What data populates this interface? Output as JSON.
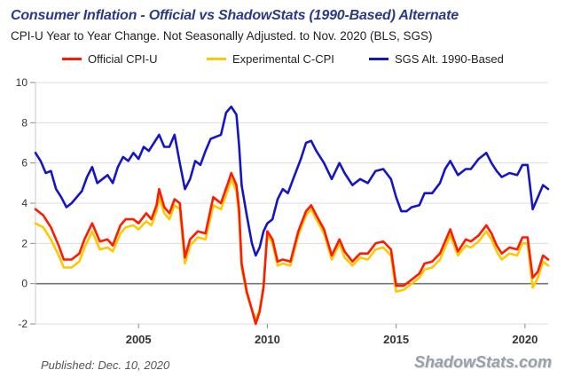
{
  "chart_data": {
    "type": "line",
    "title": "Consumer Inflation - Official vs ShadowStats (1990-Based) Alternate",
    "subtitle": "CPI-U Year to Year Change. Not Seasonally Adjusted. to Nov. 2020  (BLS, SGS)",
    "xlim": [
      2001,
      2020.9
    ],
    "ylim": [
      -2,
      10
    ],
    "x_ticks": [
      2005,
      2010,
      2015,
      2020
    ],
    "x_tick_labels": [
      "2005",
      "2010",
      "2015",
      "2020"
    ],
    "y_ticks": [
      -2,
      0,
      2,
      4,
      6,
      8,
      10
    ],
    "y_tick_labels": [
      "-2",
      "0",
      "2",
      "4",
      "6",
      "8",
      "10"
    ],
    "grid": "horizontal",
    "zero_line": true,
    "legend_position": "top",
    "series": [
      {
        "name": "Official CPI-U",
        "color": "#ff1a00",
        "points": [
          [
            2001.0,
            3.7
          ],
          [
            2001.3,
            3.4
          ],
          [
            2001.6,
            2.8
          ],
          [
            2001.9,
            1.9
          ],
          [
            2002.1,
            1.2
          ],
          [
            2002.4,
            1.2
          ],
          [
            2002.7,
            1.5
          ],
          [
            2002.9,
            2.2
          ],
          [
            2003.2,
            3.0
          ],
          [
            2003.5,
            2.1
          ],
          [
            2003.8,
            2.2
          ],
          [
            2004.0,
            1.9
          ],
          [
            2004.3,
            2.9
          ],
          [
            2004.5,
            3.2
          ],
          [
            2004.8,
            3.2
          ],
          [
            2005.0,
            3.0
          ],
          [
            2005.3,
            3.5
          ],
          [
            2005.5,
            3.2
          ],
          [
            2005.7,
            3.9
          ],
          [
            2005.8,
            4.7
          ],
          [
            2006.0,
            3.8
          ],
          [
            2006.2,
            3.5
          ],
          [
            2006.4,
            4.2
          ],
          [
            2006.6,
            4.0
          ],
          [
            2006.8,
            1.3
          ],
          [
            2007.0,
            2.2
          ],
          [
            2007.3,
            2.6
          ],
          [
            2007.6,
            2.5
          ],
          [
            2007.9,
            4.3
          ],
          [
            2008.2,
            4.0
          ],
          [
            2008.5,
            5.1
          ],
          [
            2008.6,
            5.5
          ],
          [
            2008.8,
            4.9
          ],
          [
            2008.9,
            3.7
          ],
          [
            2009.0,
            1.0
          ],
          [
            2009.2,
            -0.4
          ],
          [
            2009.4,
            -1.3
          ],
          [
            2009.55,
            -2.0
          ],
          [
            2009.7,
            -1.4
          ],
          [
            2009.85,
            -0.2
          ],
          [
            2010.0,
            2.6
          ],
          [
            2010.2,
            2.2
          ],
          [
            2010.4,
            1.1
          ],
          [
            2010.6,
            1.2
          ],
          [
            2010.9,
            1.1
          ],
          [
            2011.2,
            2.6
          ],
          [
            2011.5,
            3.6
          ],
          [
            2011.7,
            3.9
          ],
          [
            2011.9,
            3.4
          ],
          [
            2012.2,
            2.7
          ],
          [
            2012.5,
            1.4
          ],
          [
            2012.8,
            2.2
          ],
          [
            2013.0,
            1.6
          ],
          [
            2013.3,
            1.1
          ],
          [
            2013.6,
            1.5
          ],
          [
            2013.9,
            1.5
          ],
          [
            2014.2,
            2.0
          ],
          [
            2014.5,
            2.1
          ],
          [
            2014.8,
            1.7
          ],
          [
            2015.0,
            -0.1
          ],
          [
            2015.3,
            -0.1
          ],
          [
            2015.6,
            0.2
          ],
          [
            2015.9,
            0.5
          ],
          [
            2016.1,
            1.0
          ],
          [
            2016.4,
            1.1
          ],
          [
            2016.7,
            1.5
          ],
          [
            2016.9,
            2.1
          ],
          [
            2017.1,
            2.7
          ],
          [
            2017.4,
            1.6
          ],
          [
            2017.7,
            2.2
          ],
          [
            2017.9,
            2.1
          ],
          [
            2018.2,
            2.4
          ],
          [
            2018.5,
            2.9
          ],
          [
            2018.7,
            2.5
          ],
          [
            2018.9,
            1.9
          ],
          [
            2019.1,
            1.5
          ],
          [
            2019.4,
            1.8
          ],
          [
            2019.7,
            1.7
          ],
          [
            2019.9,
            2.3
          ],
          [
            2020.1,
            2.3
          ],
          [
            2020.3,
            0.3
          ],
          [
            2020.5,
            0.6
          ],
          [
            2020.7,
            1.4
          ],
          [
            2020.9,
            1.2
          ]
        ]
      },
      {
        "name": "Experimental C-CPI",
        "color": "#ffc800",
        "points": [
          [
            2001.0,
            3.0
          ],
          [
            2001.3,
            2.8
          ],
          [
            2001.6,
            2.2
          ],
          [
            2001.9,
            1.4
          ],
          [
            2002.1,
            0.8
          ],
          [
            2002.4,
            0.8
          ],
          [
            2002.7,
            1.1
          ],
          [
            2002.9,
            1.8
          ],
          [
            2003.2,
            2.6
          ],
          [
            2003.5,
            1.7
          ],
          [
            2003.8,
            1.8
          ],
          [
            2004.0,
            1.6
          ],
          [
            2004.3,
            2.5
          ],
          [
            2004.5,
            2.8
          ],
          [
            2004.8,
            2.9
          ],
          [
            2005.0,
            2.7
          ],
          [
            2005.3,
            3.1
          ],
          [
            2005.5,
            2.9
          ],
          [
            2005.7,
            3.6
          ],
          [
            2005.8,
            4.3
          ],
          [
            2006.0,
            3.5
          ],
          [
            2006.2,
            3.2
          ],
          [
            2006.4,
            3.9
          ],
          [
            2006.6,
            3.7
          ],
          [
            2006.8,
            1.0
          ],
          [
            2007.0,
            1.9
          ],
          [
            2007.3,
            2.3
          ],
          [
            2007.6,
            2.2
          ],
          [
            2007.9,
            3.9
          ],
          [
            2008.2,
            3.7
          ],
          [
            2008.5,
            4.8
          ],
          [
            2008.6,
            5.2
          ],
          [
            2008.8,
            4.6
          ],
          [
            2008.9,
            3.4
          ],
          [
            2009.0,
            0.8
          ],
          [
            2009.2,
            -0.5
          ],
          [
            2009.4,
            -1.3
          ],
          [
            2009.55,
            -1.8
          ],
          [
            2009.7,
            -1.3
          ],
          [
            2009.85,
            -0.1
          ],
          [
            2010.0,
            2.4
          ],
          [
            2010.2,
            2.0
          ],
          [
            2010.4,
            0.9
          ],
          [
            2010.6,
            1.0
          ],
          [
            2010.9,
            0.9
          ],
          [
            2011.2,
            2.4
          ],
          [
            2011.5,
            3.4
          ],
          [
            2011.7,
            3.7
          ],
          [
            2011.9,
            3.2
          ],
          [
            2012.2,
            2.5
          ],
          [
            2012.5,
            1.2
          ],
          [
            2012.8,
            2.0
          ],
          [
            2013.0,
            1.3
          ],
          [
            2013.3,
            0.9
          ],
          [
            2013.6,
            1.3
          ],
          [
            2013.9,
            1.2
          ],
          [
            2014.2,
            1.7
          ],
          [
            2014.5,
            1.8
          ],
          [
            2014.8,
            1.4
          ],
          [
            2015.0,
            -0.4
          ],
          [
            2015.3,
            -0.3
          ],
          [
            2015.6,
            0.0
          ],
          [
            2015.9,
            0.3
          ],
          [
            2016.1,
            0.7
          ],
          [
            2016.4,
            0.8
          ],
          [
            2016.7,
            1.2
          ],
          [
            2016.9,
            1.8
          ],
          [
            2017.1,
            2.4
          ],
          [
            2017.4,
            1.4
          ],
          [
            2017.7,
            1.9
          ],
          [
            2017.9,
            1.8
          ],
          [
            2018.2,
            2.1
          ],
          [
            2018.5,
            2.6
          ],
          [
            2018.7,
            2.2
          ],
          [
            2018.9,
            1.6
          ],
          [
            2019.1,
            1.2
          ],
          [
            2019.4,
            1.5
          ],
          [
            2019.7,
            1.4
          ],
          [
            2019.9,
            2.0
          ],
          [
            2020.1,
            2.0
          ],
          [
            2020.3,
            -0.2
          ],
          [
            2020.5,
            0.3
          ],
          [
            2020.7,
            1.1
          ],
          [
            2020.9,
            0.9
          ]
        ]
      },
      {
        "name": "SGS  Alt. 1990-Based",
        "color": "#1515c8",
        "points": [
          [
            2001.0,
            6.5
          ],
          [
            2001.2,
            6.1
          ],
          [
            2001.4,
            5.5
          ],
          [
            2001.6,
            5.6
          ],
          [
            2001.8,
            4.7
          ],
          [
            2002.0,
            4.3
          ],
          [
            2002.2,
            3.8
          ],
          [
            2002.4,
            4.0
          ],
          [
            2002.6,
            4.3
          ],
          [
            2002.8,
            4.6
          ],
          [
            2003.0,
            5.3
          ],
          [
            2003.2,
            5.8
          ],
          [
            2003.4,
            5.0
          ],
          [
            2003.6,
            5.2
          ],
          [
            2003.8,
            5.4
          ],
          [
            2004.0,
            5.0
          ],
          [
            2004.2,
            5.8
          ],
          [
            2004.4,
            6.3
          ],
          [
            2004.6,
            6.1
          ],
          [
            2004.8,
            6.5
          ],
          [
            2005.0,
            6.2
          ],
          [
            2005.2,
            6.8
          ],
          [
            2005.4,
            6.6
          ],
          [
            2005.6,
            7.0
          ],
          [
            2005.8,
            7.4
          ],
          [
            2006.0,
            6.8
          ],
          [
            2006.2,
            6.8
          ],
          [
            2006.4,
            7.4
          ],
          [
            2006.6,
            6.0
          ],
          [
            2006.8,
            4.7
          ],
          [
            2007.0,
            5.2
          ],
          [
            2007.2,
            6.1
          ],
          [
            2007.4,
            5.9
          ],
          [
            2007.6,
            6.6
          ],
          [
            2007.8,
            7.2
          ],
          [
            2008.0,
            7.3
          ],
          [
            2008.2,
            7.4
          ],
          [
            2008.4,
            8.5
          ],
          [
            2008.6,
            8.8
          ],
          [
            2008.8,
            8.4
          ],
          [
            2008.9,
            6.9
          ],
          [
            2009.0,
            4.9
          ],
          [
            2009.2,
            3.4
          ],
          [
            2009.4,
            2.0
          ],
          [
            2009.55,
            1.4
          ],
          [
            2009.7,
            1.8
          ],
          [
            2009.85,
            2.6
          ],
          [
            2010.0,
            3.0
          ],
          [
            2010.2,
            3.2
          ],
          [
            2010.4,
            4.2
          ],
          [
            2010.6,
            4.7
          ],
          [
            2010.8,
            4.5
          ],
          [
            2011.0,
            5.2
          ],
          [
            2011.3,
            6.2
          ],
          [
            2011.5,
            7.0
          ],
          [
            2011.7,
            7.1
          ],
          [
            2011.9,
            6.6
          ],
          [
            2012.2,
            6.0
          ],
          [
            2012.5,
            5.2
          ],
          [
            2012.8,
            6.0
          ],
          [
            2013.0,
            5.5
          ],
          [
            2013.3,
            4.9
          ],
          [
            2013.6,
            5.2
          ],
          [
            2013.9,
            5.0
          ],
          [
            2014.2,
            5.6
          ],
          [
            2014.5,
            5.7
          ],
          [
            2014.8,
            5.2
          ],
          [
            2015.0,
            4.3
          ],
          [
            2015.2,
            3.6
          ],
          [
            2015.4,
            3.6
          ],
          [
            2015.6,
            3.8
          ],
          [
            2015.9,
            3.9
          ],
          [
            2016.1,
            4.5
          ],
          [
            2016.4,
            4.5
          ],
          [
            2016.7,
            5.0
          ],
          [
            2016.9,
            5.7
          ],
          [
            2017.1,
            6.1
          ],
          [
            2017.4,
            5.4
          ],
          [
            2017.7,
            5.7
          ],
          [
            2017.9,
            5.7
          ],
          [
            2018.2,
            6.2
          ],
          [
            2018.5,
            6.5
          ],
          [
            2018.7,
            6.0
          ],
          [
            2018.9,
            5.6
          ],
          [
            2019.1,
            5.3
          ],
          [
            2019.4,
            5.5
          ],
          [
            2019.7,
            5.4
          ],
          [
            2019.9,
            5.9
          ],
          [
            2020.1,
            5.9
          ],
          [
            2020.3,
            3.7
          ],
          [
            2020.5,
            4.3
          ],
          [
            2020.7,
            4.9
          ],
          [
            2020.9,
            4.7
          ]
        ]
      }
    ]
  },
  "footer": {
    "published": "Published: Dec. 10, 2020",
    "source": "ShadowStats.com"
  }
}
